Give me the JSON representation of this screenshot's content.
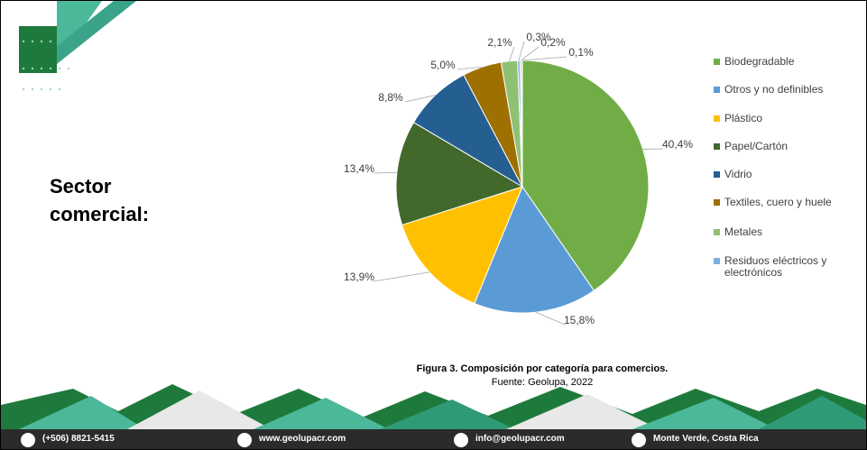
{
  "slide_title": "Sector comercial:",
  "chart_data": {
    "type": "pie",
    "categories": [
      "Biodegradable",
      "Otros y no definibles",
      "Plástico",
      "Papel/Cartón",
      "Vidrio",
      "Textiles, cuero y huele",
      "Metales",
      "Residuos eléctricos y electrónicos",
      null,
      null
    ],
    "values": [
      40.4,
      15.8,
      13.9,
      13.4,
      8.8,
      5.0,
      2.1,
      0.3,
      0.2,
      0.1
    ],
    "value_labels": [
      "40,4%",
      "15,8%",
      "13,9%",
      "13,4%",
      "8,8%",
      "5,0%",
      "2,1%",
      "0,3%",
      "0,2%",
      "0,1%"
    ],
    "colors": [
      "#70ad47",
      "#5b9bd5",
      "#ffc000",
      "#43682b",
      "#255e91",
      "#9e7000",
      "#8fc173",
      "#7cafdd",
      "#a5a5a5",
      "#264478"
    ],
    "legend": "right"
  },
  "caption": {
    "figure": "Figura 3. Composición por categoría para comercios.",
    "source": "Fuente: Geolupa, 2022"
  },
  "footer": [
    "(+506) 8821-5415",
    "www.geolupacr.com",
    "info@geolupacr.com",
    "Monte Verde, Costa Rica"
  ]
}
